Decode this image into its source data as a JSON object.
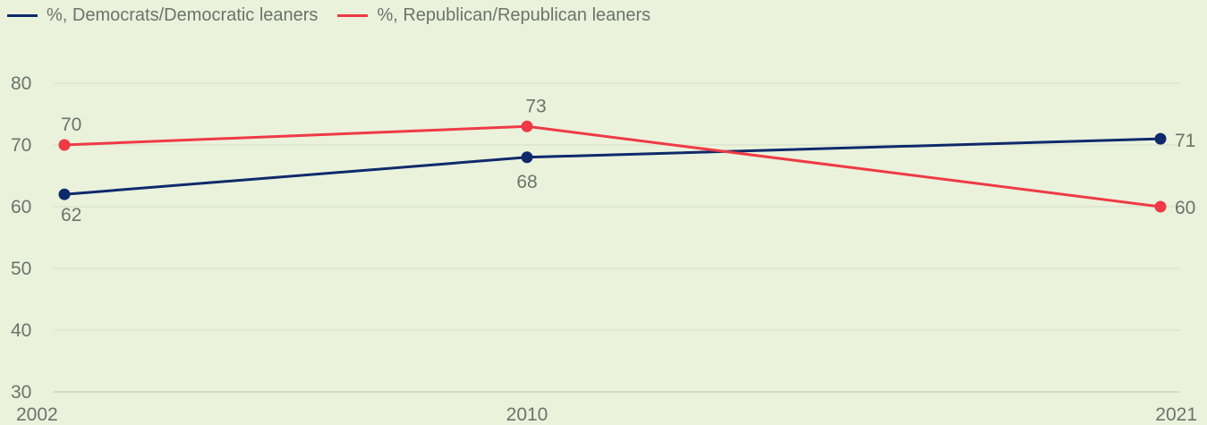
{
  "chart_data": {
    "type": "line",
    "title": "",
    "xlabel": "",
    "ylabel": "",
    "x": [
      2002,
      2010,
      2021
    ],
    "x_labels": [
      "2002",
      "2010",
      "2021"
    ],
    "ylim": [
      30,
      80
    ],
    "yticks": [
      "30",
      "40",
      "50",
      "60",
      "70",
      "80"
    ],
    "grid": true,
    "legend_position": "top-left",
    "series": [
      {
        "name": "%, Democrats/Democratic leaners",
        "color": "#0f2a6b",
        "values": [
          62,
          68,
          71
        ],
        "labels": [
          "62",
          "68",
          "71"
        ]
      },
      {
        "name": "%, Republican/Republican leaners",
        "color": "#ef3a45",
        "values": [
          70,
          73,
          60
        ],
        "labels": [
          "70",
          "73",
          "60"
        ]
      }
    ]
  }
}
